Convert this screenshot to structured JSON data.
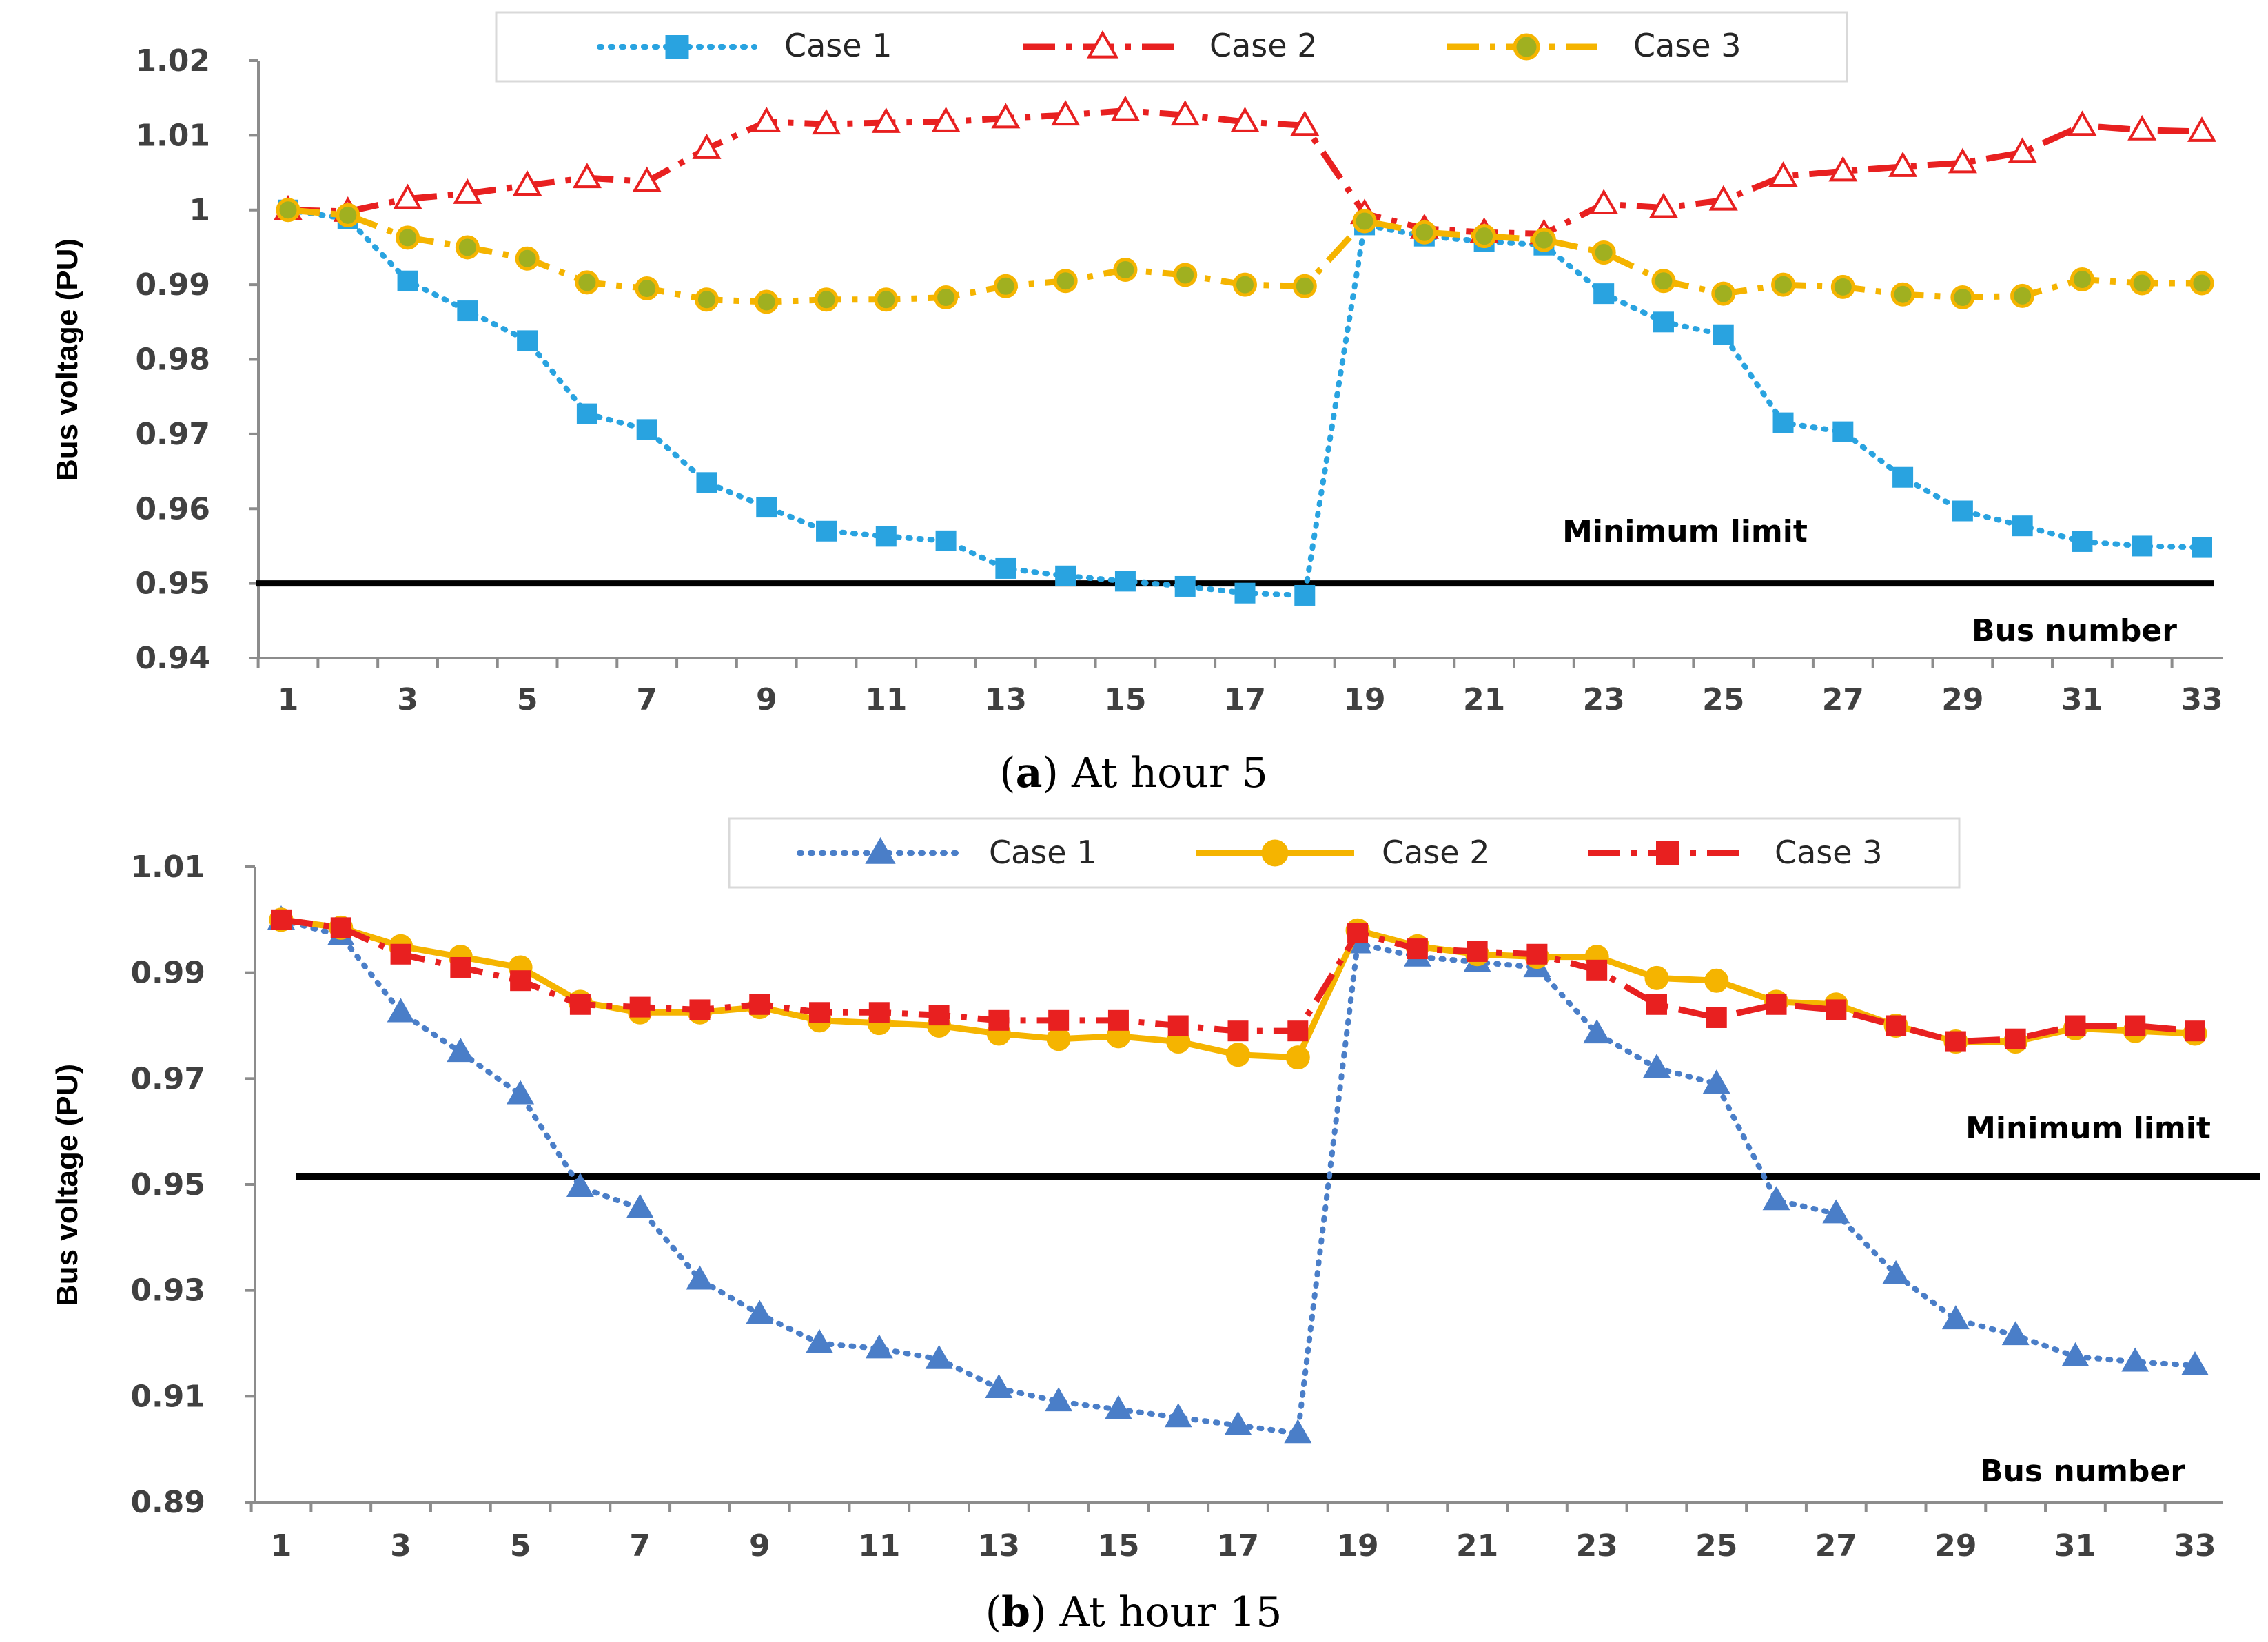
{
  "chart_data": [
    {
      "type": "line",
      "panel": "a",
      "caption_letter": "a",
      "caption_text": "At hour 5",
      "xlabel": "Bus number",
      "ylabel": "Bus voltage (PU)",
      "ylim": [
        0.94,
        1.02
      ],
      "y_ticks": [
        "0.94",
        "0.95",
        "0.96",
        "0.97",
        "0.98",
        "0.99",
        "1",
        "1.01",
        "1.02"
      ],
      "x_ticks": [
        "1",
        "3",
        "5",
        "7",
        "9",
        "11",
        "13",
        "15",
        "17",
        "19",
        "21",
        "23",
        "25",
        "27",
        "29",
        "31",
        "33"
      ],
      "x": [
        1,
        2,
        3,
        4,
        5,
        6,
        7,
        8,
        9,
        10,
        11,
        12,
        13,
        14,
        15,
        16,
        17,
        18,
        19,
        20,
        21,
        22,
        23,
        24,
        25,
        26,
        27,
        28,
        29,
        30,
        31,
        32,
        33
      ],
      "min_limit_value": 0.95,
      "min_limit_label": "Minimum limit",
      "legend_position": "top",
      "series": [
        {
          "name": "Case 1",
          "color": "#29a3e0",
          "marker": "square",
          "dash": "dotted",
          "values": [
            1.0,
            0.9988,
            0.9905,
            0.9865,
            0.9825,
            0.9727,
            0.9706,
            0.9635,
            0.9602,
            0.957,
            0.9563,
            0.9557,
            0.952,
            0.951,
            0.9503,
            0.9496,
            0.9487,
            0.9484,
            0.998,
            0.9965,
            0.9958,
            0.9953,
            0.9888,
            0.985,
            0.9833,
            0.9715,
            0.9703,
            0.9642,
            0.9597,
            0.9577,
            0.9556,
            0.955,
            0.9548
          ]
        },
        {
          "name": "Case 2",
          "color": "#e82020",
          "marker": "triangle",
          "dash": "dashdot",
          "values": [
            1.0,
            0.9998,
            1.0015,
            1.0022,
            1.0033,
            1.0043,
            1.0038,
            1.0082,
            1.0118,
            1.0115,
            1.0117,
            1.0118,
            1.0123,
            1.0127,
            1.0133,
            1.0127,
            1.0118,
            1.0113,
            0.9995,
            0.9975,
            0.997,
            0.9968,
            1.0008,
            1.0003,
            1.0013,
            1.0045,
            1.0052,
            1.0058,
            1.0063,
            1.0077,
            1.0113,
            1.0107,
            1.0105
          ]
        },
        {
          "name": "Case 3",
          "color": "#f5b400",
          "marker": "circle",
          "dash": "dashdot",
          "marker_fill": "#a0b020",
          "values": [
            1.0,
            0.9993,
            0.9963,
            0.995,
            0.9935,
            0.9903,
            0.9895,
            0.988,
            0.9877,
            0.988,
            0.988,
            0.9883,
            0.9898,
            0.9905,
            0.992,
            0.9913,
            0.99,
            0.9898,
            0.9985,
            0.997,
            0.9965,
            0.996,
            0.9943,
            0.9905,
            0.9888,
            0.99,
            0.9897,
            0.9887,
            0.9883,
            0.9885,
            0.9907,
            0.9902,
            0.9902
          ]
        }
      ]
    },
    {
      "type": "line",
      "panel": "b",
      "caption_letter": "b",
      "caption_text": "At hour 15",
      "xlabel": "Bus number",
      "ylabel": "Bus voltage (PU)",
      "ylim": [
        0.89,
        1.01
      ],
      "y_ticks": [
        "0.89",
        "0.91",
        "0.93",
        "0.95",
        "0.97",
        "0.99",
        "1.01"
      ],
      "x_ticks": [
        "1",
        "3",
        "5",
        "7",
        "9",
        "11",
        "13",
        "15",
        "17",
        "19",
        "21",
        "23",
        "25",
        "27",
        "29",
        "31",
        "33"
      ],
      "x": [
        1,
        2,
        3,
        4,
        5,
        6,
        7,
        8,
        9,
        10,
        11,
        12,
        13,
        14,
        15,
        16,
        17,
        18,
        19,
        20,
        21,
        22,
        23,
        24,
        25,
        26,
        27,
        28,
        29,
        30,
        31,
        32,
        33
      ],
      "min_limit_value": 0.9515,
      "min_limit_label": "Minimum limit",
      "legend_position": "top",
      "series": [
        {
          "name": "Case 1",
          "color": "#4a7ec8",
          "marker": "triangle",
          "dash": "dotted",
          "values": [
            1.0,
            0.997,
            0.9825,
            0.975,
            0.967,
            0.9495,
            0.9455,
            0.932,
            0.9255,
            0.92,
            0.919,
            0.917,
            0.9115,
            0.909,
            0.9075,
            0.906,
            0.9045,
            0.903,
            0.9955,
            0.993,
            0.992,
            0.991,
            0.9785,
            0.972,
            0.969,
            0.947,
            0.9445,
            0.933,
            0.9245,
            0.9215,
            0.9175,
            0.9165,
            0.9158
          ]
        },
        {
          "name": "Case 2",
          "color": "#f5b400",
          "marker": "circle",
          "dash": "solid",
          "values": [
            1.0,
            0.9985,
            0.995,
            0.993,
            0.991,
            0.9845,
            0.9825,
            0.9825,
            0.9835,
            0.981,
            0.9805,
            0.98,
            0.9785,
            0.9775,
            0.978,
            0.977,
            0.9745,
            0.974,
            0.998,
            0.995,
            0.9935,
            0.993,
            0.993,
            0.989,
            0.9885,
            0.9845,
            0.984,
            0.98,
            0.977,
            0.977,
            0.9795,
            0.979,
            0.9785
          ]
        },
        {
          "name": "Case 3",
          "color": "#e82020",
          "marker": "square",
          "dash": "dashdot",
          "values": [
            1.0,
            0.9985,
            0.9935,
            0.991,
            0.9885,
            0.984,
            0.9835,
            0.983,
            0.984,
            0.9825,
            0.9825,
            0.982,
            0.981,
            0.981,
            0.981,
            0.98,
            0.979,
            0.979,
            0.9975,
            0.9945,
            0.994,
            0.9935,
            0.9905,
            0.984,
            0.9815,
            0.984,
            0.983,
            0.98,
            0.977,
            0.9775,
            0.98,
            0.98,
            0.979
          ]
        }
      ]
    }
  ]
}
